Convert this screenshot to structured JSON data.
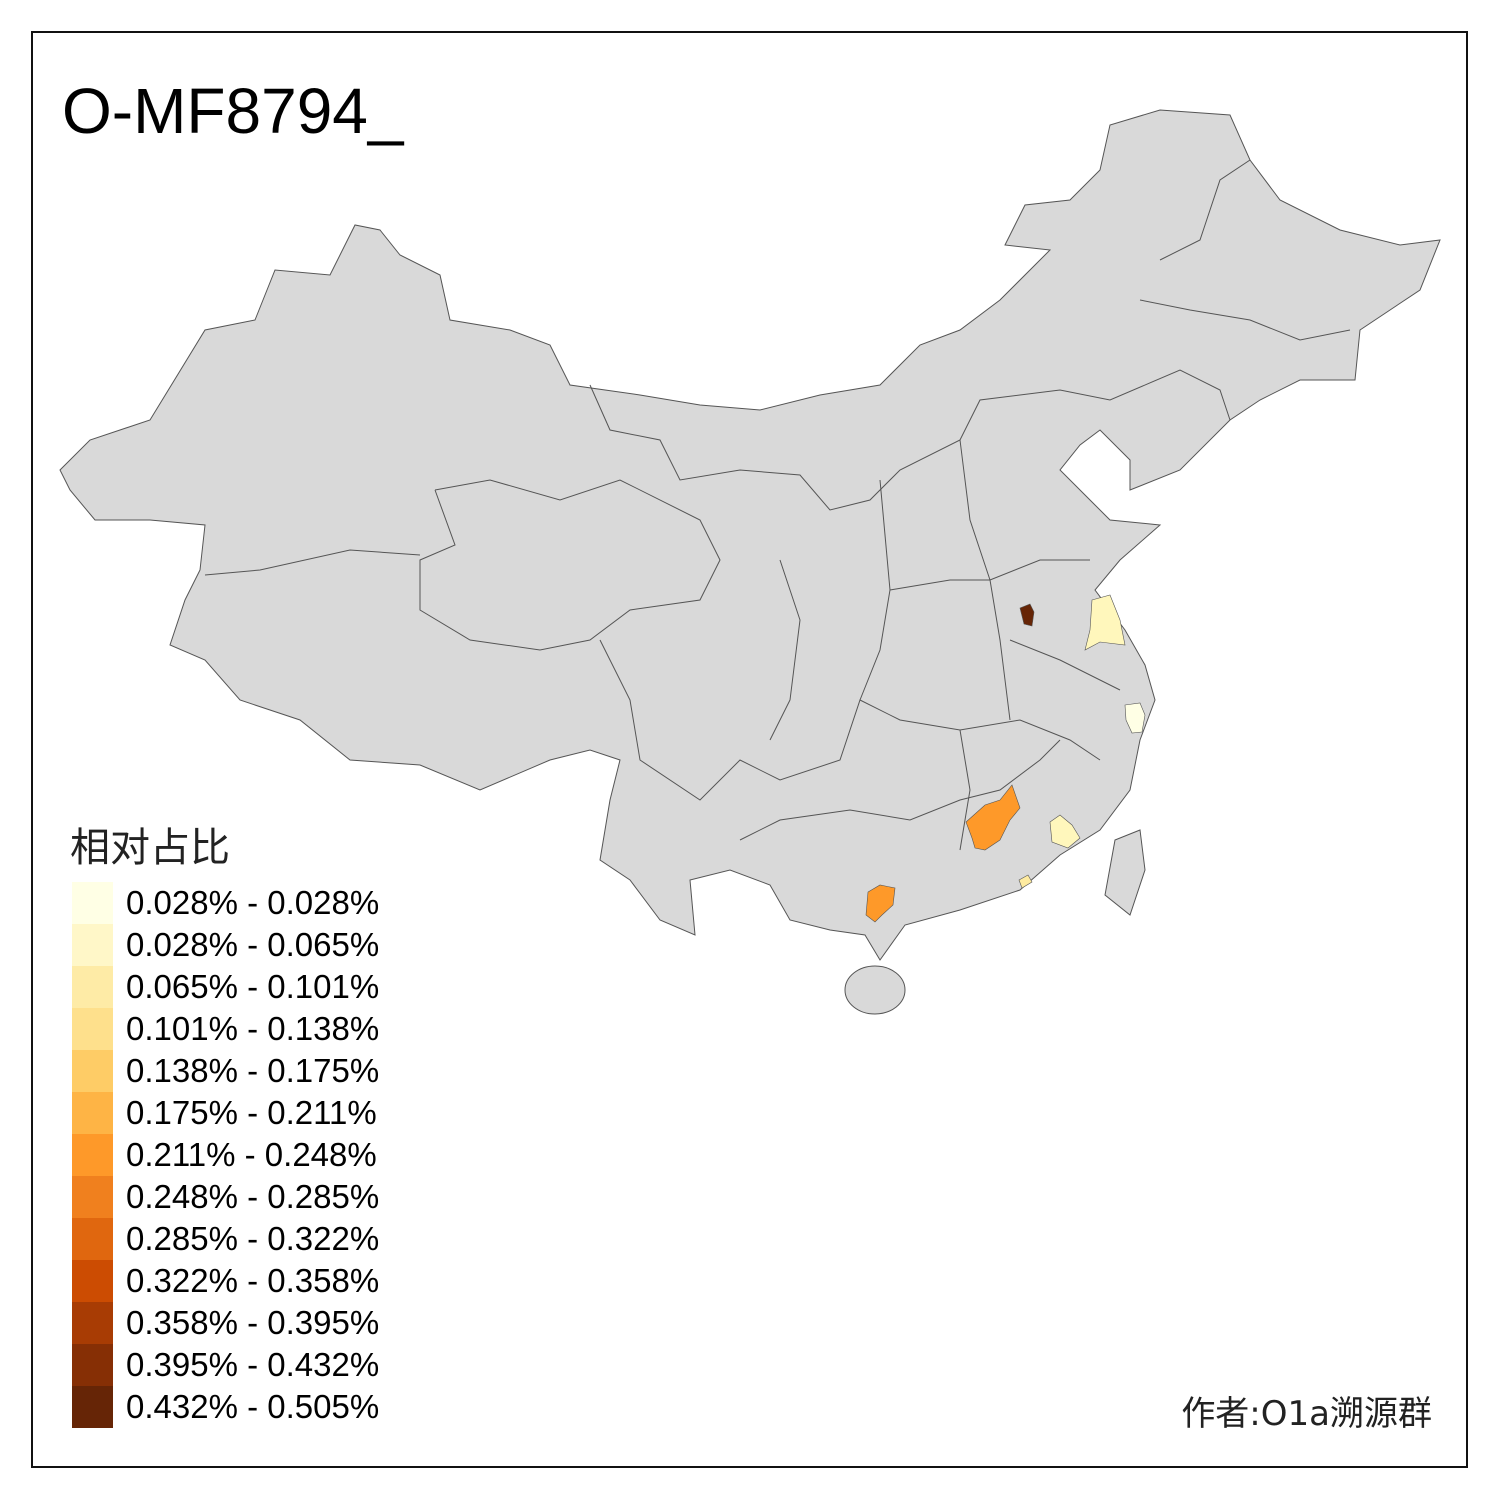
{
  "title": "O-MF8794_",
  "map": {
    "base_color": "#D9D9D9",
    "border_color": "#555555",
    "highlighted_regions": [
      {
        "color": "#662506",
        "legend_class": "0.432% - 0.505%"
      },
      {
        "color": "#FE9929",
        "legend_class": "0.211% - 0.248%"
      },
      {
        "color": "#FE9929",
        "legend_class": "0.211% - 0.248%"
      },
      {
        "color": "#FFF7BC",
        "legend_class": "0.028% - 0.065%"
      },
      {
        "color": "#FFF7BC",
        "legend_class": "0.028% - 0.065%"
      },
      {
        "color": "#FFFFE5",
        "legend_class": "0.028% - 0.028%"
      },
      {
        "color": "#FEEBA0",
        "legend_class": "0.065% - 0.101%"
      }
    ]
  },
  "legend": {
    "title": "相对占比",
    "items": [
      {
        "label": "0.028% - 0.028%",
        "color": "#FFFFE5"
      },
      {
        "label": "0.028% - 0.065%",
        "color": "#FFF7C8"
      },
      {
        "label": "0.065% - 0.101%",
        "color": "#FEEBA6"
      },
      {
        "label": "0.101% - 0.138%",
        "color": "#FEE08C"
      },
      {
        "label": "0.138% - 0.175%",
        "color": "#FECC66"
      },
      {
        "label": "0.175% - 0.211%",
        "color": "#FEB445"
      },
      {
        "label": "0.211% - 0.248%",
        "color": "#FE9929"
      },
      {
        "label": "0.248% - 0.285%",
        "color": "#F0801E"
      },
      {
        "label": "0.285% - 0.322%",
        "color": "#E0670F"
      },
      {
        "label": "0.322% - 0.358%",
        "color": "#CC4C02"
      },
      {
        "label": "0.358% - 0.395%",
        "color": "#A83C04"
      },
      {
        "label": "0.395% - 0.432%",
        "color": "#862F05"
      },
      {
        "label": "0.432% - 0.505%",
        "color": "#662506"
      }
    ]
  },
  "credit": "作者:O1a溯源群"
}
